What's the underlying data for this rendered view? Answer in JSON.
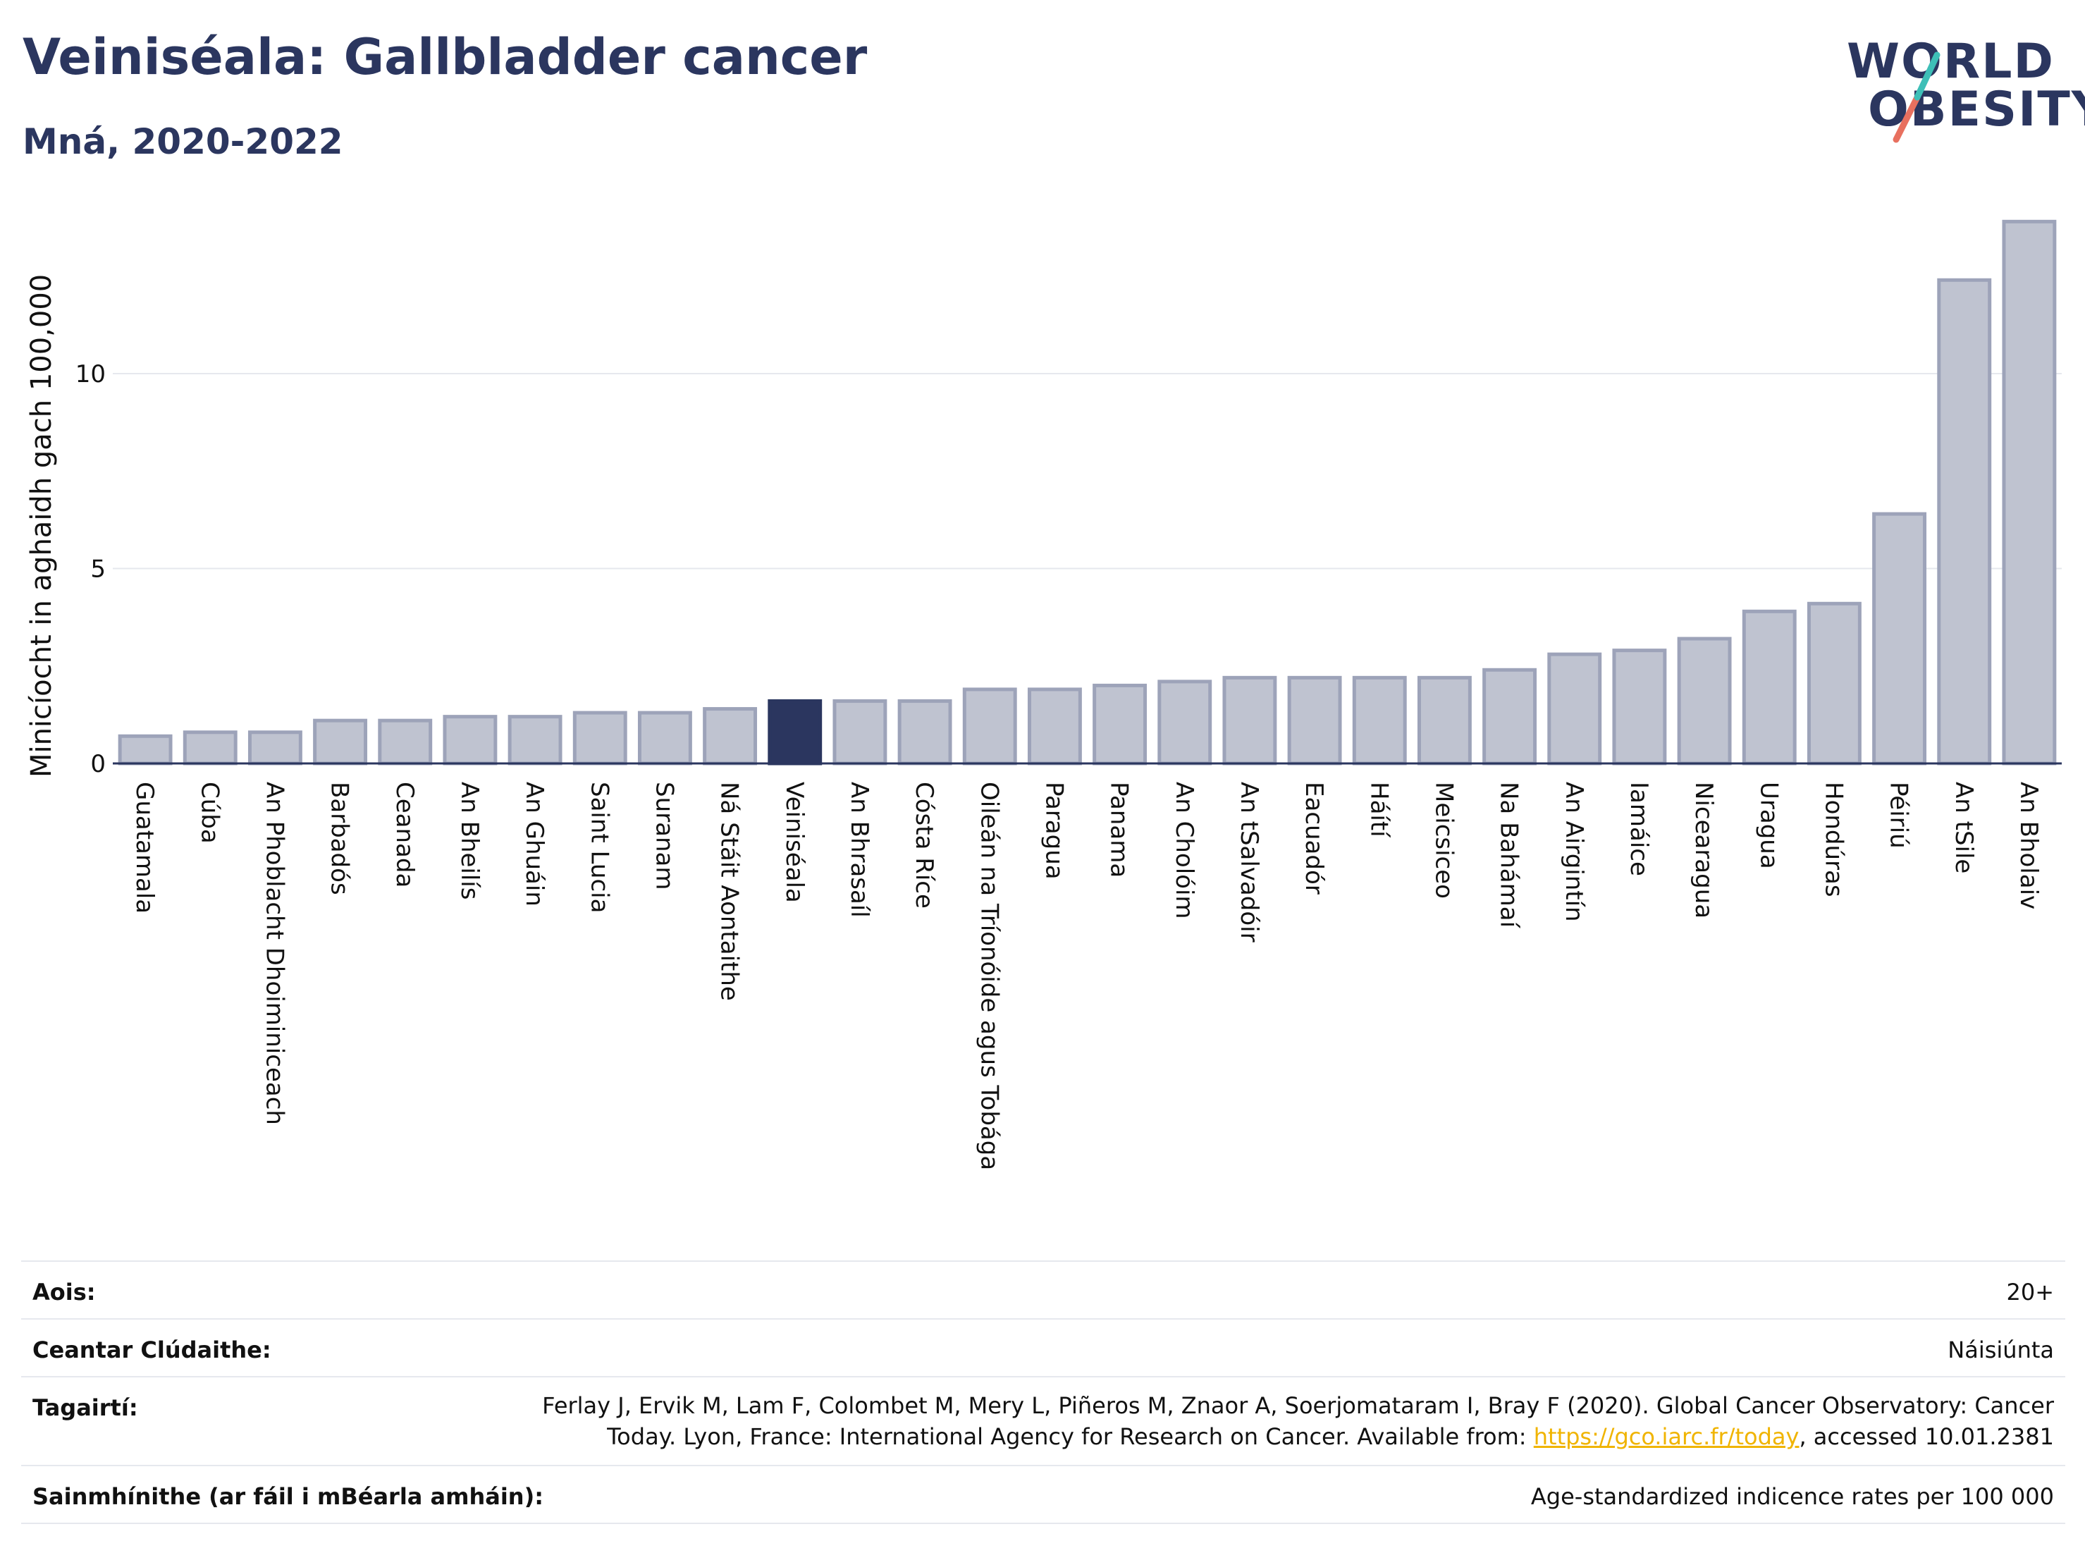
{
  "title": "Veiniséala: Gallbladder cancer",
  "subtitle": "Mná, 2020-2022",
  "logo": {
    "line1": "WORLD",
    "line2": "OBESITY"
  },
  "colors": {
    "highlight": "#2b365f",
    "bar_fill": "#bfc3d0",
    "bar_stroke": "#9da3b9",
    "title": "#2b365f",
    "logo_teal": "#3ebfb7",
    "logo_coral": "#e8705f",
    "link": "#f0b400"
  },
  "chart_data": {
    "type": "bar",
    "title": "",
    "xlabel": "",
    "ylabel": "Minicíocht in aghaidh gach 100,000",
    "ylim": [
      0,
      14
    ],
    "yticks": [
      0,
      5,
      10
    ],
    "grid": true,
    "highlight": "Veiniséala",
    "categories": [
      "Guatamala",
      "Cúba",
      "An Phoblacht Dhoiminiceach",
      "Barbadós",
      "Ceanada",
      "An Bheilís",
      "An Ghuáin",
      "Saint Lucia",
      "Suranam",
      "Ná Stáit Aontaithe",
      "Veiniséala",
      "An Bhrasaíl",
      "Cósta Ríce",
      "Oileán na Tríonóide agus Tobága",
      "Paragua",
      "Panama",
      "An Cholóim",
      "An tSalvadóir",
      "Eacuadór",
      "Háítí",
      "Meicsiceo",
      "Na Bahámaí",
      "An Airgintín",
      "Iamáice",
      "Nicearagua",
      "Uragua",
      "Hondúras",
      "Péiriú",
      "An tSile",
      "An Bholaiv"
    ],
    "values": [
      0.7,
      0.8,
      0.8,
      1.1,
      1.1,
      1.2,
      1.2,
      1.3,
      1.3,
      1.4,
      1.6,
      1.6,
      1.6,
      1.9,
      1.9,
      2.0,
      2.1,
      2.2,
      2.2,
      2.2,
      2.2,
      2.4,
      2.8,
      2.9,
      3.2,
      3.9,
      4.1,
      6.4,
      12.4,
      13.9
    ]
  },
  "info": {
    "age_label": "Aois:",
    "age_value": "20+",
    "coverage_label": "Ceantar Clúdaithe:",
    "coverage_value": "Náisiúnta",
    "refs_label": "Tagairtí:",
    "refs_text_1": "Ferlay J, Ervik M, Lam F, Colombet M, Mery L, Piñeros M, Znaor A, Soerjomataram I, Bray F (2020). Global Cancer Observatory: Cancer Today. Lyon, France: International Agency for Research on Cancer. Available from: ",
    "refs_link": "https://gco.iarc.fr/today",
    "refs_text_2": ", accessed 10.01.2381",
    "defs_label": "Sainmhínithe (ar fáil i mBéarla amháin):",
    "defs_value": "Age-standardized indicence rates per 100 000"
  }
}
